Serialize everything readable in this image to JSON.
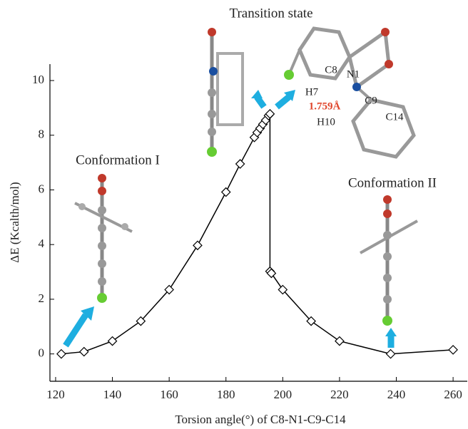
{
  "chart_data": {
    "type": "line",
    "x_label": "Torsion  angle(°) of C8-N1-C9-C14",
    "y_label": "ΔE (Kcalth/mol)",
    "x": [
      122,
      130,
      140,
      150,
      160,
      170,
      180,
      185,
      190,
      191,
      192,
      193,
      194,
      195,
      195.5,
      195.5,
      196,
      200,
      210,
      220,
      238,
      260
    ],
    "values": [
      0,
      0.08,
      0.47,
      1.2,
      2.35,
      3.97,
      5.92,
      6.95,
      7.92,
      8.1,
      8.25,
      8.4,
      8.55,
      8.72,
      8.78,
      3.02,
      2.95,
      2.35,
      1.2,
      0.47,
      0.0,
      0.15
    ],
    "color": "#000000",
    "xlim": [
      118,
      265
    ],
    "ylim": [
      -1,
      10.6
    ],
    "xticks": [
      120,
      140,
      160,
      180,
      200,
      220,
      240,
      260
    ],
    "yticks": [
      0,
      2,
      4,
      6,
      8,
      10
    ],
    "annotations": [
      "Transition state",
      "Conformation I",
      "Conformation II",
      "C8",
      "N1",
      "H7",
      "C9",
      "1.759Å",
      "H10",
      "C14"
    ]
  }
}
